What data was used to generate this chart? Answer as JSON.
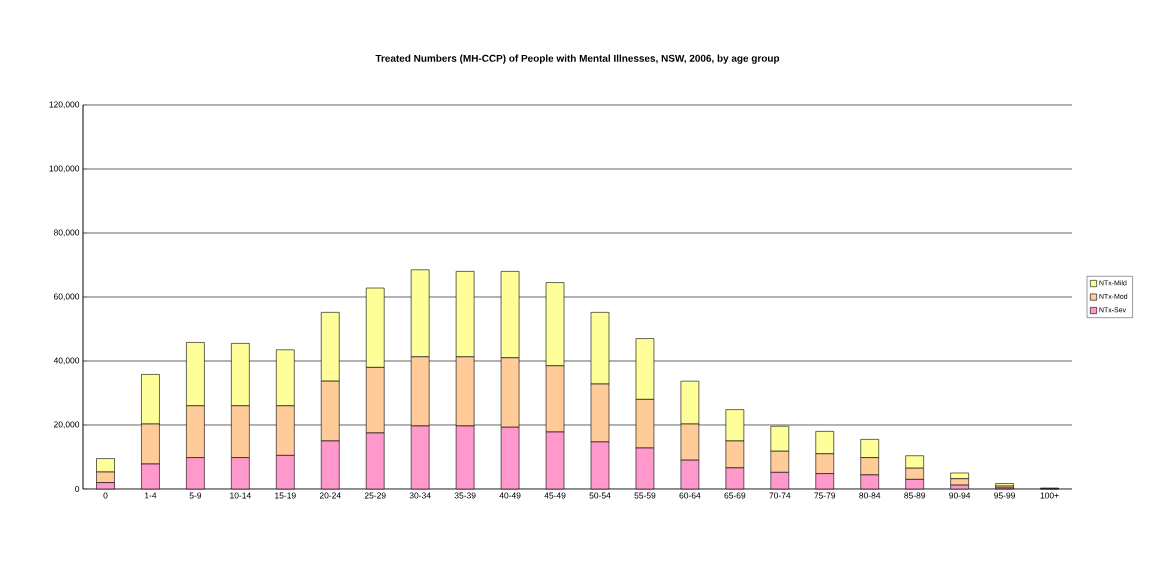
{
  "chart_data": {
    "type": "bar",
    "stacked": true,
    "title": "Treated Numbers (MH-CCP) of People with Mental Illnesses, NSW, 2006, by age group",
    "categories": [
      "0",
      "1-4",
      "5-9",
      "10-14",
      "15-19",
      "20-24",
      "25-29",
      "30-34",
      "35-39",
      "40-49",
      "45-49",
      "50-54",
      "55-59",
      "60-64",
      "65-69",
      "70-74",
      "75-79",
      "80-84",
      "85-89",
      "90-94",
      "95-99",
      "100+"
    ],
    "series": [
      {
        "name": "NTx-Sev",
        "color": "#ff99cc",
        "values": [
          2000,
          7800,
          9800,
          9800,
          10500,
          15000,
          17500,
          19700,
          19700,
          19300,
          17800,
          14700,
          12800,
          9000,
          6600,
          5200,
          4800,
          4400,
          3000,
          1200,
          300,
          100
        ]
      },
      {
        "name": "NTx-Mod",
        "color": "#ffcc99",
        "values": [
          3300,
          12500,
          16200,
          16200,
          15500,
          18700,
          20500,
          21600,
          21600,
          21700,
          20700,
          18100,
          15200,
          11300,
          8400,
          6600,
          6200,
          5400,
          3500,
          2000,
          600,
          200
        ]
      },
      {
        "name": "NTx-Mild",
        "color": "#ffff99",
        "values": [
          4200,
          15500,
          19800,
          19500,
          17500,
          21500,
          24800,
          27200,
          26700,
          27000,
          26000,
          22400,
          19000,
          13400,
          9800,
          7800,
          7000,
          5700,
          3900,
          1800,
          800,
          null
        ]
      }
    ],
    "ylim": [
      0,
      120000
    ],
    "yticks": [
      {
        "value": 0,
        "label": "0"
      },
      {
        "value": 20000,
        "label": "20,000"
      },
      {
        "value": 40000,
        "label": "40,000"
      },
      {
        "value": 60000,
        "label": "60,000"
      },
      {
        "value": 80000,
        "label": "80,000"
      },
      {
        "value": 100000,
        "label": "100,000"
      },
      {
        "value": 120000,
        "label": "120,000"
      }
    ],
    "grid": "y",
    "legend": "right"
  }
}
